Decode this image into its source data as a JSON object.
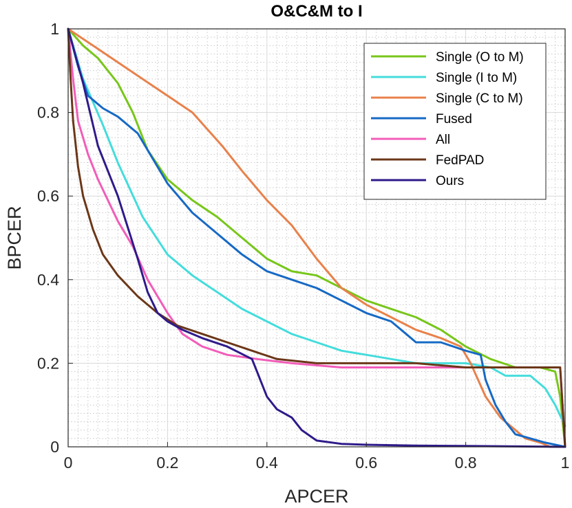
{
  "chart_data": {
    "type": "line",
    "title": "O&C&M to I",
    "xlabel": "APCER",
    "ylabel": "BPCER",
    "xlim": [
      0,
      1
    ],
    "ylim": [
      0,
      1
    ],
    "xticks": [
      0,
      0.2,
      0.4,
      0.6,
      0.8,
      1
    ],
    "yticks": [
      0,
      0.2,
      0.4,
      0.6,
      0.8,
      1
    ],
    "xtick_labels": [
      "0",
      "0.2",
      "0.4",
      "0.6",
      "0.8",
      "1"
    ],
    "ytick_labels": [
      "0",
      "0.2",
      "0.4",
      "0.6",
      "0.8",
      "1"
    ],
    "grid": true,
    "minor_grid": true,
    "legend_position": "top-right",
    "series": [
      {
        "name": "Single (O to M)",
        "color": "#77c61a",
        "x": [
          0,
          0.03,
          0.06,
          0.1,
          0.13,
          0.16,
          0.2,
          0.25,
          0.3,
          0.35,
          0.4,
          0.45,
          0.5,
          0.55,
          0.6,
          0.65,
          0.7,
          0.75,
          0.8,
          0.85,
          0.9,
          0.95,
          0.98,
          0.99,
          1
        ],
        "y": [
          1,
          0.96,
          0.93,
          0.87,
          0.8,
          0.71,
          0.64,
          0.59,
          0.55,
          0.5,
          0.45,
          0.42,
          0.41,
          0.38,
          0.35,
          0.33,
          0.31,
          0.28,
          0.24,
          0.21,
          0.19,
          0.19,
          0.18,
          0.12,
          0
        ]
      },
      {
        "name": "Single (I to M)",
        "color": "#44dcdc",
        "x": [
          0,
          0.03,
          0.07,
          0.1,
          0.15,
          0.2,
          0.25,
          0.3,
          0.35,
          0.4,
          0.45,
          0.5,
          0.55,
          0.6,
          0.65,
          0.7,
          0.75,
          0.8,
          0.85,
          0.88,
          0.93,
          0.96,
          0.98,
          1
        ],
        "y": [
          1,
          0.88,
          0.77,
          0.68,
          0.55,
          0.46,
          0.41,
          0.37,
          0.33,
          0.3,
          0.27,
          0.25,
          0.23,
          0.22,
          0.21,
          0.2,
          0.2,
          0.2,
          0.19,
          0.17,
          0.17,
          0.14,
          0.1,
          0.05
        ]
      },
      {
        "name": "Single (C to M)",
        "color": "#e8814b",
        "x": [
          0,
          0.05,
          0.1,
          0.15,
          0.2,
          0.25,
          0.31,
          0.35,
          0.4,
          0.45,
          0.5,
          0.55,
          0.6,
          0.65,
          0.7,
          0.75,
          0.79,
          0.81,
          0.84,
          0.87,
          0.9,
          0.92,
          0.95,
          0.97,
          1
        ],
        "y": [
          1,
          0.96,
          0.92,
          0.88,
          0.84,
          0.8,
          0.72,
          0.66,
          0.59,
          0.53,
          0.45,
          0.38,
          0.34,
          0.31,
          0.28,
          0.26,
          0.24,
          0.2,
          0.12,
          0.07,
          0.04,
          0.02,
          0.01,
          0,
          0
        ]
      },
      {
        "name": "Fused",
        "color": "#1669c4",
        "x": [
          0,
          0.02,
          0.04,
          0.07,
          0.1,
          0.14,
          0.17,
          0.2,
          0.25,
          0.3,
          0.35,
          0.4,
          0.45,
          0.5,
          0.55,
          0.6,
          0.65,
          0.68,
          0.7,
          0.75,
          0.8,
          0.83,
          0.84,
          0.86,
          0.88,
          0.9,
          0.93,
          0.96,
          1
        ],
        "y": [
          1,
          0.91,
          0.84,
          0.81,
          0.79,
          0.75,
          0.69,
          0.63,
          0.56,
          0.51,
          0.46,
          0.42,
          0.4,
          0.38,
          0.35,
          0.32,
          0.3,
          0.27,
          0.25,
          0.25,
          0.23,
          0.22,
          0.16,
          0.1,
          0.06,
          0.03,
          0.02,
          0.01,
          0
        ]
      },
      {
        "name": "All",
        "color": "#f25db9",
        "x": [
          0,
          0.01,
          0.02,
          0.04,
          0.06,
          0.08,
          0.1,
          0.13,
          0.16,
          0.2,
          0.23,
          0.27,
          0.32,
          0.38,
          0.45,
          0.55,
          0.7,
          0.85,
          0.99,
          1
        ],
        "y": [
          1,
          0.88,
          0.78,
          0.7,
          0.64,
          0.59,
          0.54,
          0.48,
          0.4,
          0.32,
          0.27,
          0.24,
          0.22,
          0.21,
          0.2,
          0.19,
          0.19,
          0.19,
          0.19,
          0
        ]
      },
      {
        "name": "FedPAD",
        "color": "#6b3718",
        "x": [
          0,
          0.005,
          0.01,
          0.02,
          0.03,
          0.05,
          0.07,
          0.1,
          0.14,
          0.18,
          0.22,
          0.27,
          0.32,
          0.37,
          0.42,
          0.5,
          0.6,
          0.7,
          0.8,
          0.9,
          0.99,
          1
        ],
        "y": [
          1,
          0.88,
          0.78,
          0.67,
          0.6,
          0.52,
          0.46,
          0.41,
          0.36,
          0.32,
          0.29,
          0.27,
          0.25,
          0.23,
          0.21,
          0.2,
          0.2,
          0.2,
          0.19,
          0.19,
          0.19,
          0
        ]
      },
      {
        "name": "Ours",
        "color": "#2f1a8a",
        "x": [
          0,
          0.03,
          0.06,
          0.1,
          0.14,
          0.16,
          0.18,
          0.2,
          0.23,
          0.27,
          0.32,
          0.37,
          0.38,
          0.39,
          0.4,
          0.42,
          0.45,
          0.47,
          0.5,
          0.55,
          0.6,
          0.7,
          0.8,
          0.9,
          1
        ],
        "y": [
          1,
          0.87,
          0.72,
          0.6,
          0.45,
          0.37,
          0.32,
          0.3,
          0.28,
          0.26,
          0.24,
          0.21,
          0.18,
          0.15,
          0.12,
          0.09,
          0.07,
          0.04,
          0.015,
          0.007,
          0.005,
          0.003,
          0.002,
          0.001,
          0
        ]
      }
    ]
  }
}
